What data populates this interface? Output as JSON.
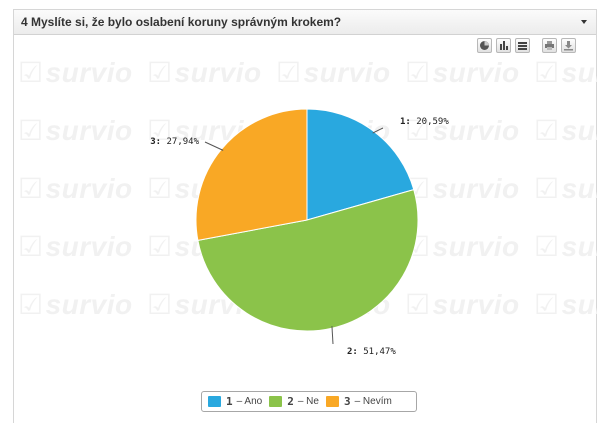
{
  "question": {
    "title": "4 Myslíte si, že bylo oslabení koruny správným krokem?"
  },
  "toolbar": {
    "buttons": [
      {
        "name": "pie-chart-view-button",
        "icon": "pie-chart-icon"
      },
      {
        "name": "column-chart-view-button",
        "icon": "column-chart-icon"
      },
      {
        "name": "bar-chart-view-button",
        "icon": "bar-chart-icon"
      },
      {
        "name": "print-button",
        "icon": "printer-icon"
      },
      {
        "name": "download-button",
        "icon": "download-icon"
      }
    ]
  },
  "watermark": {
    "text": "survio"
  },
  "chart_data": {
    "type": "pie",
    "title": "",
    "slices": [
      {
        "label": "1",
        "name": "Ano",
        "value": 20.59,
        "value_label": "20,59%",
        "color": "#29a8df"
      },
      {
        "label": "2",
        "name": "Ne",
        "value": 51.47,
        "value_label": "51,47%",
        "color": "#8bc34a"
      },
      {
        "label": "3",
        "name": "Nevím",
        "value": 27.94,
        "value_label": "27,94%",
        "color": "#f9a825"
      }
    ],
    "legend_position": "bottom-center",
    "legend_prefix_sep": "–"
  }
}
